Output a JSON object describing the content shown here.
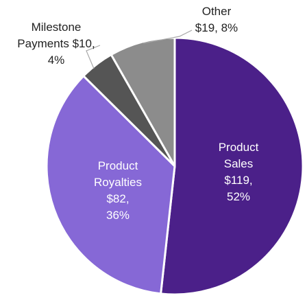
{
  "chart_data": {
    "type": "pie",
    "title": "",
    "start_angle_deg": 0,
    "direction": "clockwise",
    "slice_border_color": "#ffffff",
    "slices": [
      {
        "label": "Product Sales",
        "value": 119,
        "percent": 52,
        "color": "#4b2089",
        "label_lines": [
          "Product",
          "Sales",
          "$119,",
          "52%"
        ],
        "label_color": "#ffffff",
        "label_position": "inside"
      },
      {
        "label": "Product Royalties",
        "value": 82,
        "percent": 36,
        "color": "#8668d6",
        "label_lines": [
          "Product",
          "Royalties",
          "$82,",
          "36%"
        ],
        "label_color": "#ffffff",
        "label_position": "inside"
      },
      {
        "label": "Milestone Payments",
        "value": 10,
        "percent": 4,
        "color": "#555555",
        "label_lines": [
          "Milestone",
          "Payments $10,",
          "4%"
        ],
        "label_color": "#222222",
        "label_position": "outside"
      },
      {
        "label": "Other",
        "value": 19,
        "percent": 8,
        "color": "#8c8c8c",
        "label_lines": [
          "Other",
          "$19, 8%"
        ],
        "label_color": "#222222",
        "label_position": "outside"
      }
    ]
  }
}
